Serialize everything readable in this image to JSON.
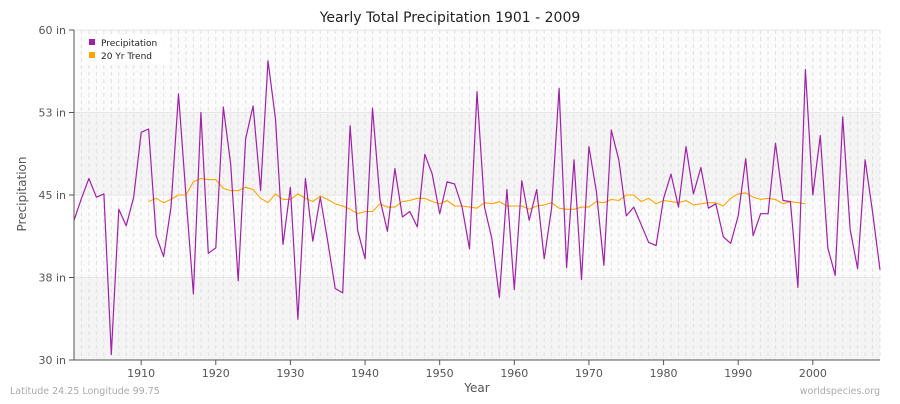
{
  "chart_data": {
    "type": "line",
    "title": "Yearly Total Precipitation 1901 - 2009",
    "xlabel": "Year",
    "ylabel": "Precipitation",
    "xlim": [
      1901,
      2009
    ],
    "ylim": [
      30,
      60
    ],
    "y_ticks": [
      {
        "value": 60,
        "label": "60 in"
      },
      {
        "value": 52.5,
        "label": "53 in"
      },
      {
        "value": 45,
        "label": "45 in"
      },
      {
        "value": 37.5,
        "label": "38 in"
      },
      {
        "value": 30,
        "label": "30 in"
      }
    ],
    "x_ticks": [
      1910,
      1920,
      1930,
      1940,
      1950,
      1960,
      1970,
      1980,
      1990,
      2000
    ],
    "grid": true,
    "legend_placement": "top-left",
    "series": [
      {
        "name": "Precipitation",
        "color": "#a020a8",
        "x_start": 1901,
        "values": [
          42.7,
          44.7,
          46.5,
          44.8,
          45.1,
          30.5,
          43.7,
          42.2,
          44.8,
          50.7,
          51.0,
          41.3,
          39.4,
          43.9,
          54.2,
          45.0,
          36.0,
          52.5,
          39.7,
          40.2,
          53.0,
          47.8,
          37.2,
          50.1,
          53.1,
          45.4,
          57.2,
          51.9,
          40.5,
          45.7,
          33.7,
          46.5,
          40.8,
          44.8,
          40.8,
          36.5,
          36.1,
          51.3,
          41.8,
          39.2,
          52.9,
          44.6,
          41.7,
          47.4,
          43.0,
          43.5,
          42.1,
          48.7,
          46.9,
          43.3,
          46.2,
          46.0,
          43.9,
          40.1,
          54.4,
          43.9,
          41.0,
          35.7,
          45.5,
          36.4,
          46.3,
          42.7,
          45.5,
          39.2,
          43.8,
          54.7,
          38.4,
          48.2,
          37.3,
          49.4,
          45.3,
          38.6,
          50.9,
          48.2,
          43.1,
          43.9,
          42.3,
          40.7,
          40.4,
          44.7,
          46.9,
          43.9,
          49.4,
          45.1,
          47.5,
          43.8,
          44.2,
          41.2,
          40.6,
          43.1,
          48.3,
          41.3,
          43.3,
          43.3,
          49.7,
          44.5,
          44.4,
          36.6,
          56.4,
          45.0,
          50.4,
          40.2,
          37.7,
          52.1,
          41.9,
          38.3,
          48.2,
          43.5,
          38.2
        ]
      },
      {
        "name": "20 Yr Trend",
        "color": "#ffa500",
        "x_start": 1911,
        "values": [
          44.4,
          44.7,
          44.3,
          44.6,
          45.0,
          45.0,
          46.2,
          46.5,
          46.4,
          46.4,
          45.6,
          45.4,
          45.4,
          45.7,
          45.5,
          44.7,
          44.3,
          45.1,
          44.6,
          44.6,
          45.1,
          44.7,
          44.4,
          44.9,
          44.6,
          44.2,
          44.0,
          43.7,
          43.3,
          43.5,
          43.5,
          44.2,
          43.9,
          43.9,
          44.4,
          44.5,
          44.7,
          44.7,
          44.4,
          44.2,
          44.5,
          44.0,
          44.0,
          43.9,
          43.8,
          44.3,
          44.2,
          44.4,
          44.0,
          44.0,
          44.0,
          43.7,
          44.0,
          44.1,
          44.3,
          43.8,
          43.7,
          43.7,
          43.9,
          43.9,
          44.4,
          44.3,
          44.6,
          44.5,
          45.0,
          45.0,
          44.4,
          44.7,
          44.2,
          44.5,
          44.4,
          44.3,
          44.5,
          44.1,
          44.2,
          44.3,
          44.3,
          44.0,
          44.7,
          45.1,
          45.2,
          44.8,
          44.6,
          44.7,
          44.6,
          44.2,
          44.4,
          44.3,
          44.2
        ]
      }
    ]
  },
  "footer": {
    "location": "Latitude 24.25 Longitude 99.75",
    "site": "worldspecies.org"
  }
}
